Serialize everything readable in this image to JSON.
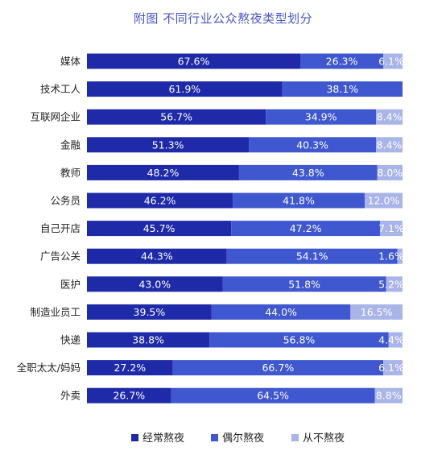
{
  "chart_data": {
    "type": "bar",
    "orientation": "horizontal",
    "stacked": true,
    "percent_stacked": true,
    "title": "附图  不同行业公众熬夜类型划分",
    "categories": [
      "媒体",
      "技术工人",
      "互联网企业",
      "金融",
      "教师",
      "公务员",
      "自己开店",
      "广告公关",
      "医护",
      "制造业员工",
      "快递",
      "全职太太/妈妈",
      "外卖"
    ],
    "series": [
      {
        "name": "经常熬夜",
        "color": "#1f2aa8",
        "values": [
          67.6,
          61.9,
          56.7,
          51.3,
          48.2,
          46.2,
          45.7,
          44.3,
          43.0,
          39.5,
          38.8,
          27.2,
          26.7
        ],
        "labels": [
          "67.6%",
          "61.9%",
          "56.7%",
          "51.3%",
          "48.2%",
          "46.2%",
          "45.7%",
          "44.3%",
          "43.0%",
          "39.5%",
          "38.8%",
          "27.2%",
          "26.7%"
        ]
      },
      {
        "name": "偶尔熬夜",
        "color": "#3f57cf",
        "values": [
          26.3,
          38.1,
          34.9,
          40.3,
          43.8,
          41.8,
          47.2,
          54.1,
          51.8,
          44.0,
          56.8,
          66.7,
          64.5
        ],
        "labels": [
          "26.3%",
          "38.1%",
          "34.9%",
          "40.3%",
          "43.8%",
          "41.8%",
          "47.2%",
          "54.1%",
          "51.8%",
          "44.0%",
          "56.8%",
          "66.7%",
          "64.5%"
        ]
      },
      {
        "name": "从不熬夜",
        "color": "#a9b4e8",
        "values": [
          6.1,
          0,
          8.4,
          8.4,
          8.0,
          12.0,
          7.1,
          1.6,
          5.2,
          16.5,
          4.4,
          6.1,
          8.8
        ],
        "labels": [
          "6.1%",
          "",
          "8.4%",
          "8.4%",
          "8.0%",
          "12.0%",
          "7.1%",
          "1.6%",
          "5.2%",
          "16.5%",
          "4.4%",
          "6.1%",
          "8.8%"
        ]
      }
    ],
    "xlim": [
      0,
      100
    ],
    "legend": "bottom",
    "grid": false
  }
}
